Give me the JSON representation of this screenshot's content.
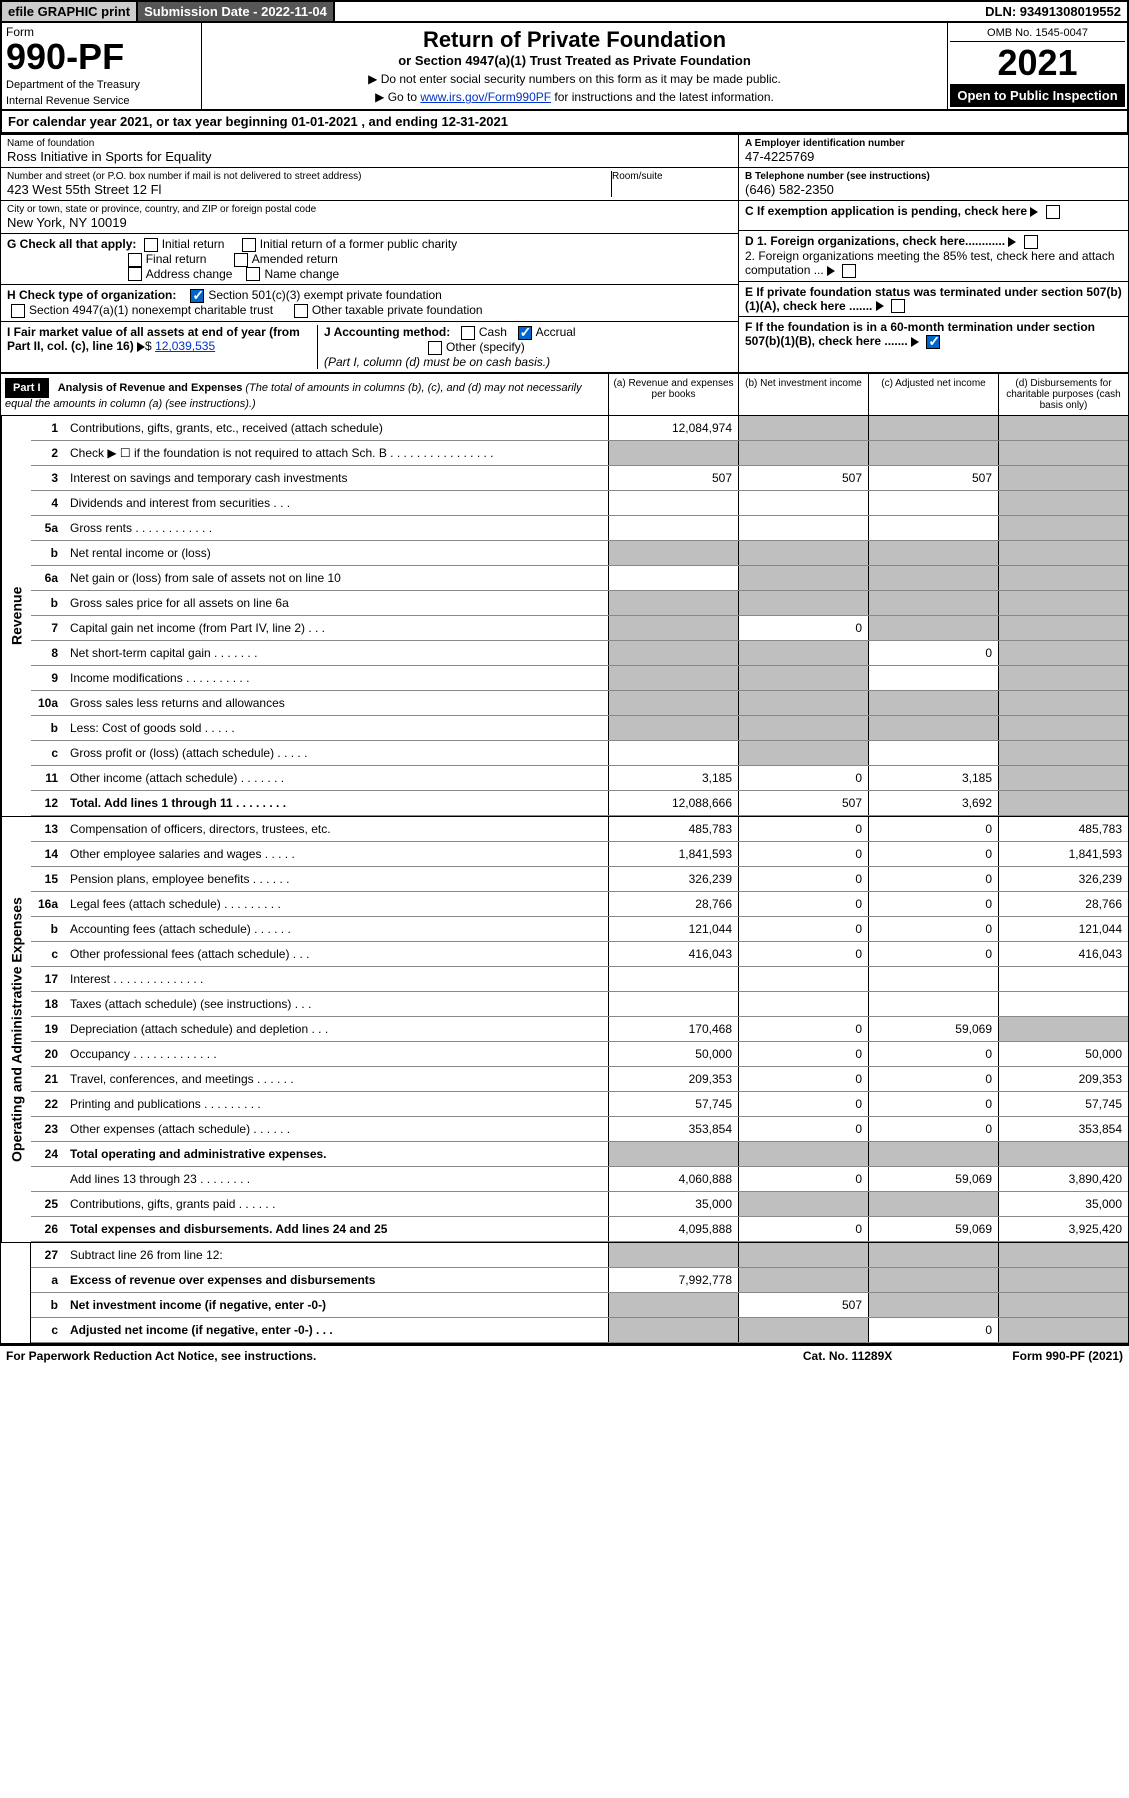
{
  "topbar": {
    "efile": "efile GRAPHIC print",
    "subdate_label": "Submission Date - 2022-11-04",
    "dln": "DLN: 93491308019552"
  },
  "header": {
    "form_label": "Form",
    "form_num": "990-PF",
    "dept1": "Department of the Treasury",
    "dept2": "Internal Revenue Service",
    "title": "Return of Private Foundation",
    "subtitle": "or Section 4947(a)(1) Trust Treated as Private Foundation",
    "note1": "▶ Do not enter social security numbers on this form as it may be made public.",
    "note2_pre": "▶ Go to ",
    "note2_link": "www.irs.gov/Form990PF",
    "note2_post": " for instructions and the latest information.",
    "omb": "OMB No. 1545-0047",
    "year": "2021",
    "open": "Open to Public Inspection"
  },
  "cal": "For calendar year 2021, or tax year beginning 01-01-2021                      , and ending 12-31-2021",
  "info": {
    "name_label": "Name of foundation",
    "name": "Ross Initiative in Sports for Equality",
    "addr_label": "Number and street (or P.O. box number if mail is not delivered to street address)",
    "addr": "423 West 55th Street 12 Fl",
    "room_label": "Room/suite",
    "city_label": "City or town, state or province, country, and ZIP or foreign postal code",
    "city": "New York, NY  10019",
    "ein_label": "A Employer identification number",
    "ein": "47-4225769",
    "tel_label": "B Telephone number (see instructions)",
    "tel": "(646) 582-2350",
    "c": "C If exemption application is pending, check here",
    "d1": "D 1. Foreign organizations, check here............",
    "d2": "2. Foreign organizations meeting the 85% test, check here and attach computation ...",
    "e": "E  If private foundation status was terminated under section 507(b)(1)(A), check here .......",
    "f": "F  If the foundation is in a 60-month termination under section 507(b)(1)(B), check here .......",
    "g_label": "G Check all that apply:",
    "g_initial": "Initial return",
    "g_initial_former": "Initial return of a former public charity",
    "g_final": "Final return",
    "g_amended": "Amended return",
    "g_addr": "Address change",
    "g_name": "Name change",
    "h_label": "H Check type of organization:",
    "h_501c3": "Section 501(c)(3) exempt private foundation",
    "h_4947": "Section 4947(a)(1) nonexempt charitable trust",
    "h_other": "Other taxable private foundation",
    "i_label": "I Fair market value of all assets at end of year (from Part II, col. (c), line 16)",
    "i_val": "12,039,535",
    "j_label": "J Accounting method:",
    "j_cash": "Cash",
    "j_accrual": "Accrual",
    "j_other": "Other (specify)",
    "j_note": "(Part I, column (d) must be on cash basis.)"
  },
  "part1": {
    "hdr": "Part I",
    "title": "Analysis of Revenue and Expenses",
    "title_note": " (The total of amounts in columns (b), (c), and (d) may not necessarily equal the amounts in column (a) (see instructions).)",
    "col_a": "(a)   Revenue and expenses per books",
    "col_b": "(b)   Net investment income",
    "col_c": "(c)   Adjusted net income",
    "col_d": "(d)   Disbursements for charitable purposes (cash basis only)"
  },
  "sides": {
    "rev": "Revenue",
    "exp": "Operating and Administrative Expenses"
  },
  "lines": {
    "l1": {
      "n": "1",
      "d": "Contributions, gifts, grants, etc., received (attach schedule)",
      "a": "12,084,974"
    },
    "l2": {
      "n": "2",
      "d": "Check ▶ ☐ if the foundation is not required to attach Sch. B  .  .  .  .  .  .  .  .  .  .  .  .  .  .  .  ."
    },
    "l3": {
      "n": "3",
      "d": "Interest on savings and temporary cash investments",
      "a": "507",
      "b": "507",
      "c": "507"
    },
    "l4": {
      "n": "4",
      "d": "Dividends and interest from securities    .   .   ."
    },
    "l5a": {
      "n": "5a",
      "d": "Gross rents   .   .   .   .   .   .   .   .   .   .   .   ."
    },
    "l5b": {
      "n": "b",
      "d": "Net rental income or (loss)"
    },
    "l6a": {
      "n": "6a",
      "d": "Net gain or (loss) from sale of assets not on line 10"
    },
    "l6b": {
      "n": "b",
      "d": "Gross sales price for all assets on line 6a"
    },
    "l7": {
      "n": "7",
      "d": "Capital gain net income (from Part IV, line 2)   .   .   .",
      "b": "0"
    },
    "l8": {
      "n": "8",
      "d": "Net short-term capital gain   .   .   .   .   .   .   .",
      "c": "0"
    },
    "l9": {
      "n": "9",
      "d": "Income modifications  .   .   .   .   .   .   .   .   .   ."
    },
    "l10a": {
      "n": "10a",
      "d": "Gross sales less returns and allowances"
    },
    "l10b": {
      "n": "b",
      "d": "Less: Cost of goods sold    .   .   .   .   ."
    },
    "l10c": {
      "n": "c",
      "d": "Gross profit or (loss) (attach schedule)    .   .   .   .   ."
    },
    "l11": {
      "n": "11",
      "d": "Other income (attach schedule)   .   .   .   .   .   .   .",
      "a": "3,185",
      "b": "0",
      "c": "3,185"
    },
    "l12": {
      "n": "12",
      "d": "Total. Add lines 1 through 11   .   .   .   .   .   .   .   .",
      "a": "12,088,666",
      "b": "507",
      "c": "3,692"
    },
    "l13": {
      "n": "13",
      "d": "Compensation of officers, directors, trustees, etc.",
      "a": "485,783",
      "b": "0",
      "c": "0",
      "dd": "485,783"
    },
    "l14": {
      "n": "14",
      "d": "Other employee salaries and wages    .   .   .   .   .",
      "a": "1,841,593",
      "b": "0",
      "c": "0",
      "dd": "1,841,593"
    },
    "l15": {
      "n": "15",
      "d": "Pension plans, employee benefits  .   .   .   .   .   .",
      "a": "326,239",
      "b": "0",
      "c": "0",
      "dd": "326,239"
    },
    "l16a": {
      "n": "16a",
      "d": "Legal fees (attach schedule) .   .   .   .   .   .   .   .   .",
      "a": "28,766",
      "b": "0",
      "c": "0",
      "dd": "28,766"
    },
    "l16b": {
      "n": "b",
      "d": "Accounting fees (attach schedule)  .   .   .   .   .   .",
      "a": "121,044",
      "b": "0",
      "c": "0",
      "dd": "121,044"
    },
    "l16c": {
      "n": "c",
      "d": "Other professional fees (attach schedule)    .   .   .",
      "a": "416,043",
      "b": "0",
      "c": "0",
      "dd": "416,043"
    },
    "l17": {
      "n": "17",
      "d": "Interest  .   .   .   .   .   .   .   .   .   .   .   .   .   ."
    },
    "l18": {
      "n": "18",
      "d": "Taxes (attach schedule) (see instructions)    .   .   ."
    },
    "l19": {
      "n": "19",
      "d": "Depreciation (attach schedule) and depletion    .   .   .",
      "a": "170,468",
      "b": "0",
      "c": "59,069"
    },
    "l20": {
      "n": "20",
      "d": "Occupancy .   .   .   .   .   .   .   .   .   .   .   .   .",
      "a": "50,000",
      "b": "0",
      "c": "0",
      "dd": "50,000"
    },
    "l21": {
      "n": "21",
      "d": "Travel, conferences, and meetings  .   .   .   .   .   .",
      "a": "209,353",
      "b": "0",
      "c": "0",
      "dd": "209,353"
    },
    "l22": {
      "n": "22",
      "d": "Printing and publications  .   .   .   .   .   .   .   .   .",
      "a": "57,745",
      "b": "0",
      "c": "0",
      "dd": "57,745"
    },
    "l23": {
      "n": "23",
      "d": "Other expenses (attach schedule)  .   .   .   .   .   .",
      "a": "353,854",
      "b": "0",
      "c": "0",
      "dd": "353,854"
    },
    "l24": {
      "n": "24",
      "d": "Total operating and administrative expenses."
    },
    "l24b": {
      "n": "",
      "d": "Add lines 13 through 23   .   .   .   .   .   .   .   .",
      "a": "4,060,888",
      "b": "0",
      "c": "59,069",
      "dd": "3,890,420"
    },
    "l25": {
      "n": "25",
      "d": "Contributions, gifts, grants paid    .   .   .   .   .   .",
      "a": "35,000",
      "dd": "35,000"
    },
    "l26": {
      "n": "26",
      "d": "Total expenses and disbursements. Add lines 24 and 25",
      "a": "4,095,888",
      "b": "0",
      "c": "59,069",
      "dd": "3,925,420"
    },
    "l27": {
      "n": "27",
      "d": "Subtract line 26 from line 12:"
    },
    "l27a": {
      "n": "a",
      "d": "Excess of revenue over expenses and disbursements",
      "a": "7,992,778"
    },
    "l27b": {
      "n": "b",
      "d": "Net investment income (if negative, enter -0-)",
      "b": "507"
    },
    "l27c": {
      "n": "c",
      "d": "Adjusted net income (if negative, enter -0-)   .   .   .",
      "c": "0"
    }
  },
  "footer": {
    "left": "For Paperwork Reduction Act Notice, see instructions.",
    "mid": "Cat. No. 11289X",
    "right": "Form 990-PF (2021)"
  }
}
